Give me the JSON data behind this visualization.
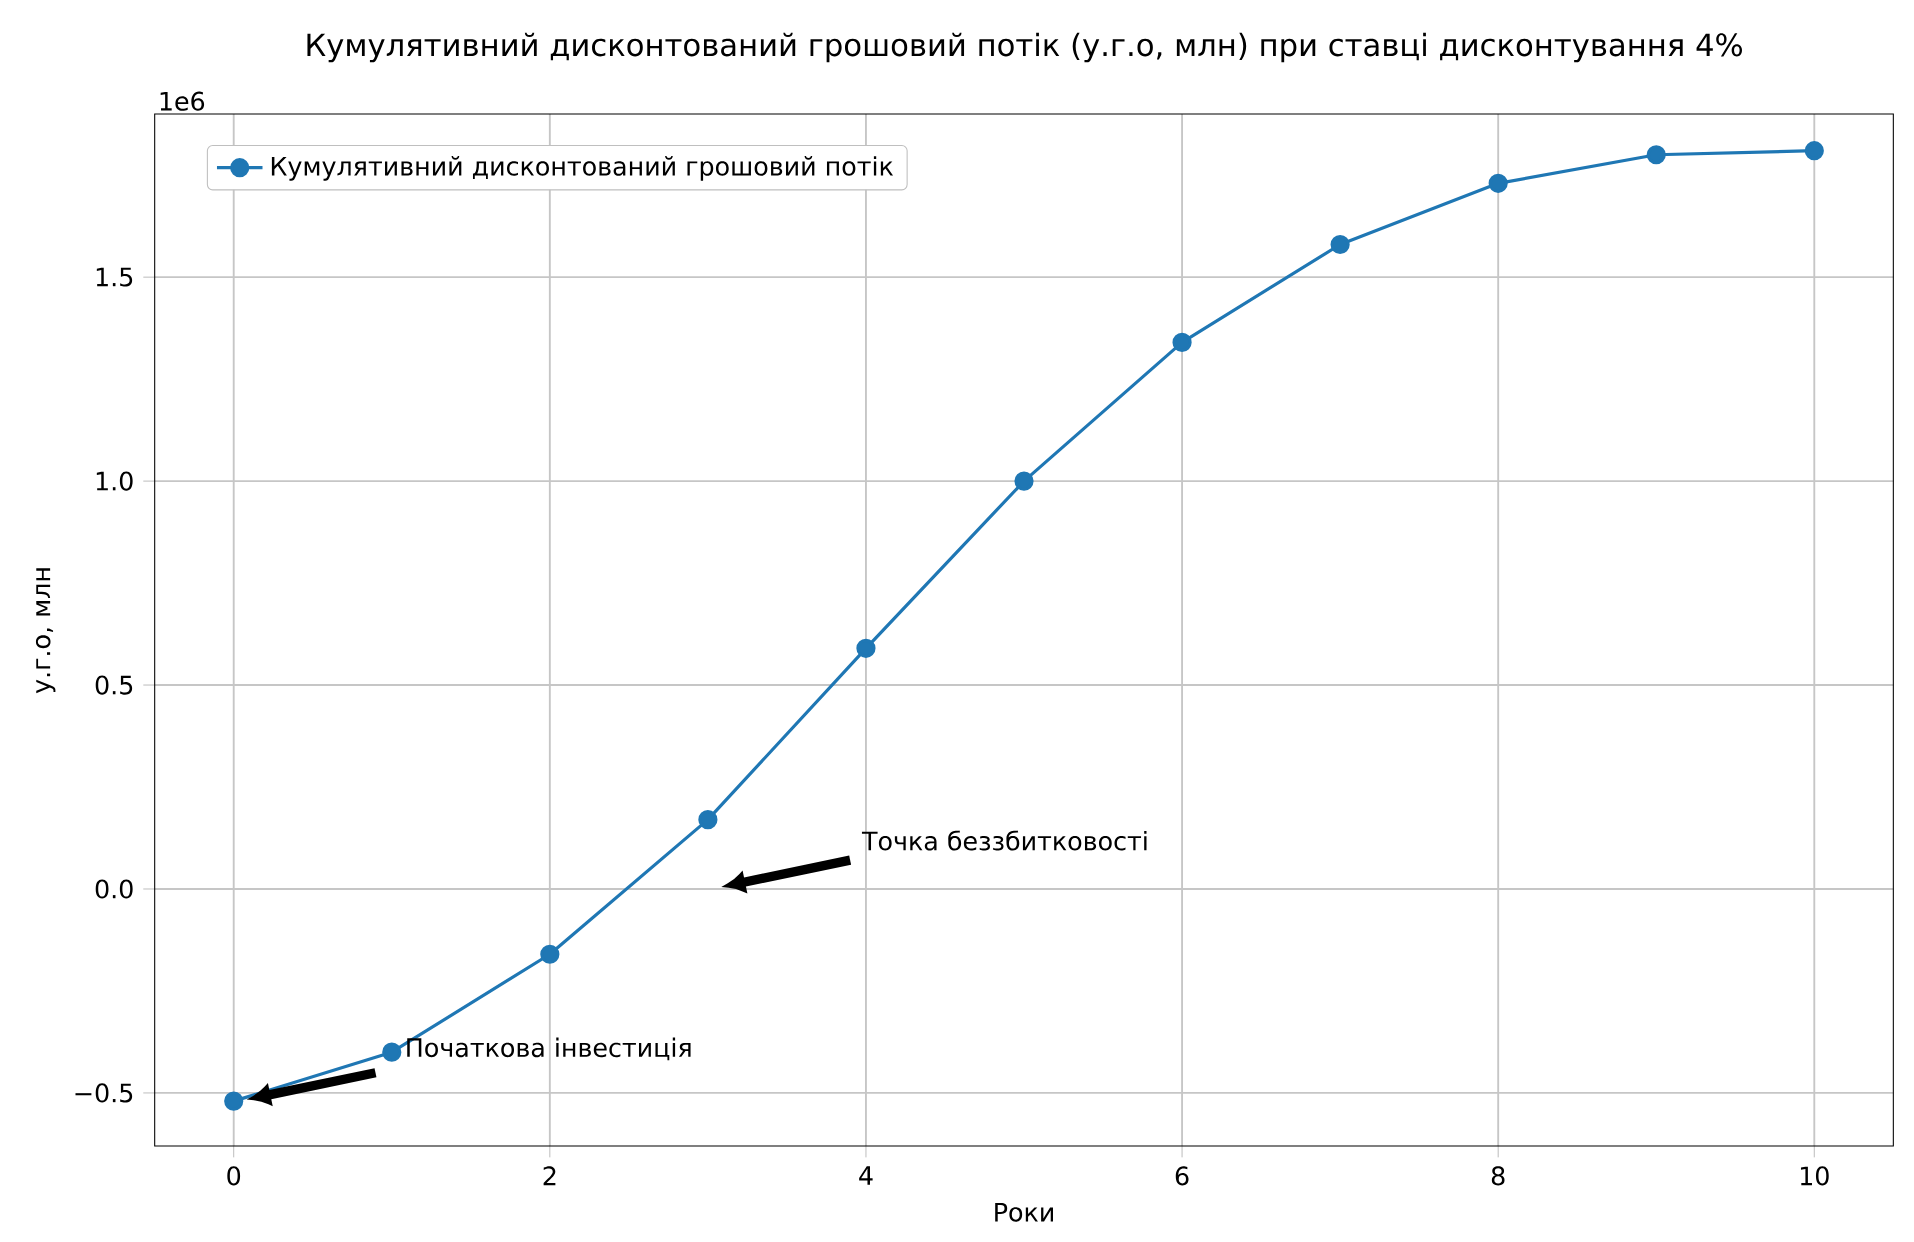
{
  "chart_data": {
    "type": "line",
    "title": "Кумулятивний дисконтований грошовий потік (у.г.о, млн) при ставці дисконтування 4%",
    "xlabel": "Роки",
    "ylabel": "у.г.о, млн",
    "x": [
      0,
      1,
      2,
      3,
      4,
      5,
      6,
      7,
      8,
      9,
      10
    ],
    "series": [
      {
        "name": "Кумулятивний дисконтований грошовий потік",
        "color": "#1f77b4",
        "values": [
          -0.52,
          -0.4,
          -0.16,
          0.17,
          0.59,
          1.0,
          1.34,
          1.58,
          1.73,
          1.8,
          1.81
        ]
      }
    ],
    "xlim": [
      -0.5,
      10.5
    ],
    "ylim": [
      -0.63,
      1.9
    ],
    "xticks": [
      0,
      2,
      4,
      6,
      8,
      10
    ],
    "yticks": [
      {
        "value": -0.5,
        "label": "−0.5"
      },
      {
        "value": 0,
        "label": "0.0"
      },
      {
        "value": 0.5,
        "label": "0.5"
      },
      {
        "value": 1,
        "label": "1.0"
      },
      {
        "value": 1.5,
        "label": "1.5"
      }
    ],
    "annotations": [
      "1e6",
      "Початкова інвестиція",
      "Точка беззбитковості"
    ],
    "grid": true,
    "legend": "top left",
    "marker": "circle",
    "line_style": "solid"
  }
}
